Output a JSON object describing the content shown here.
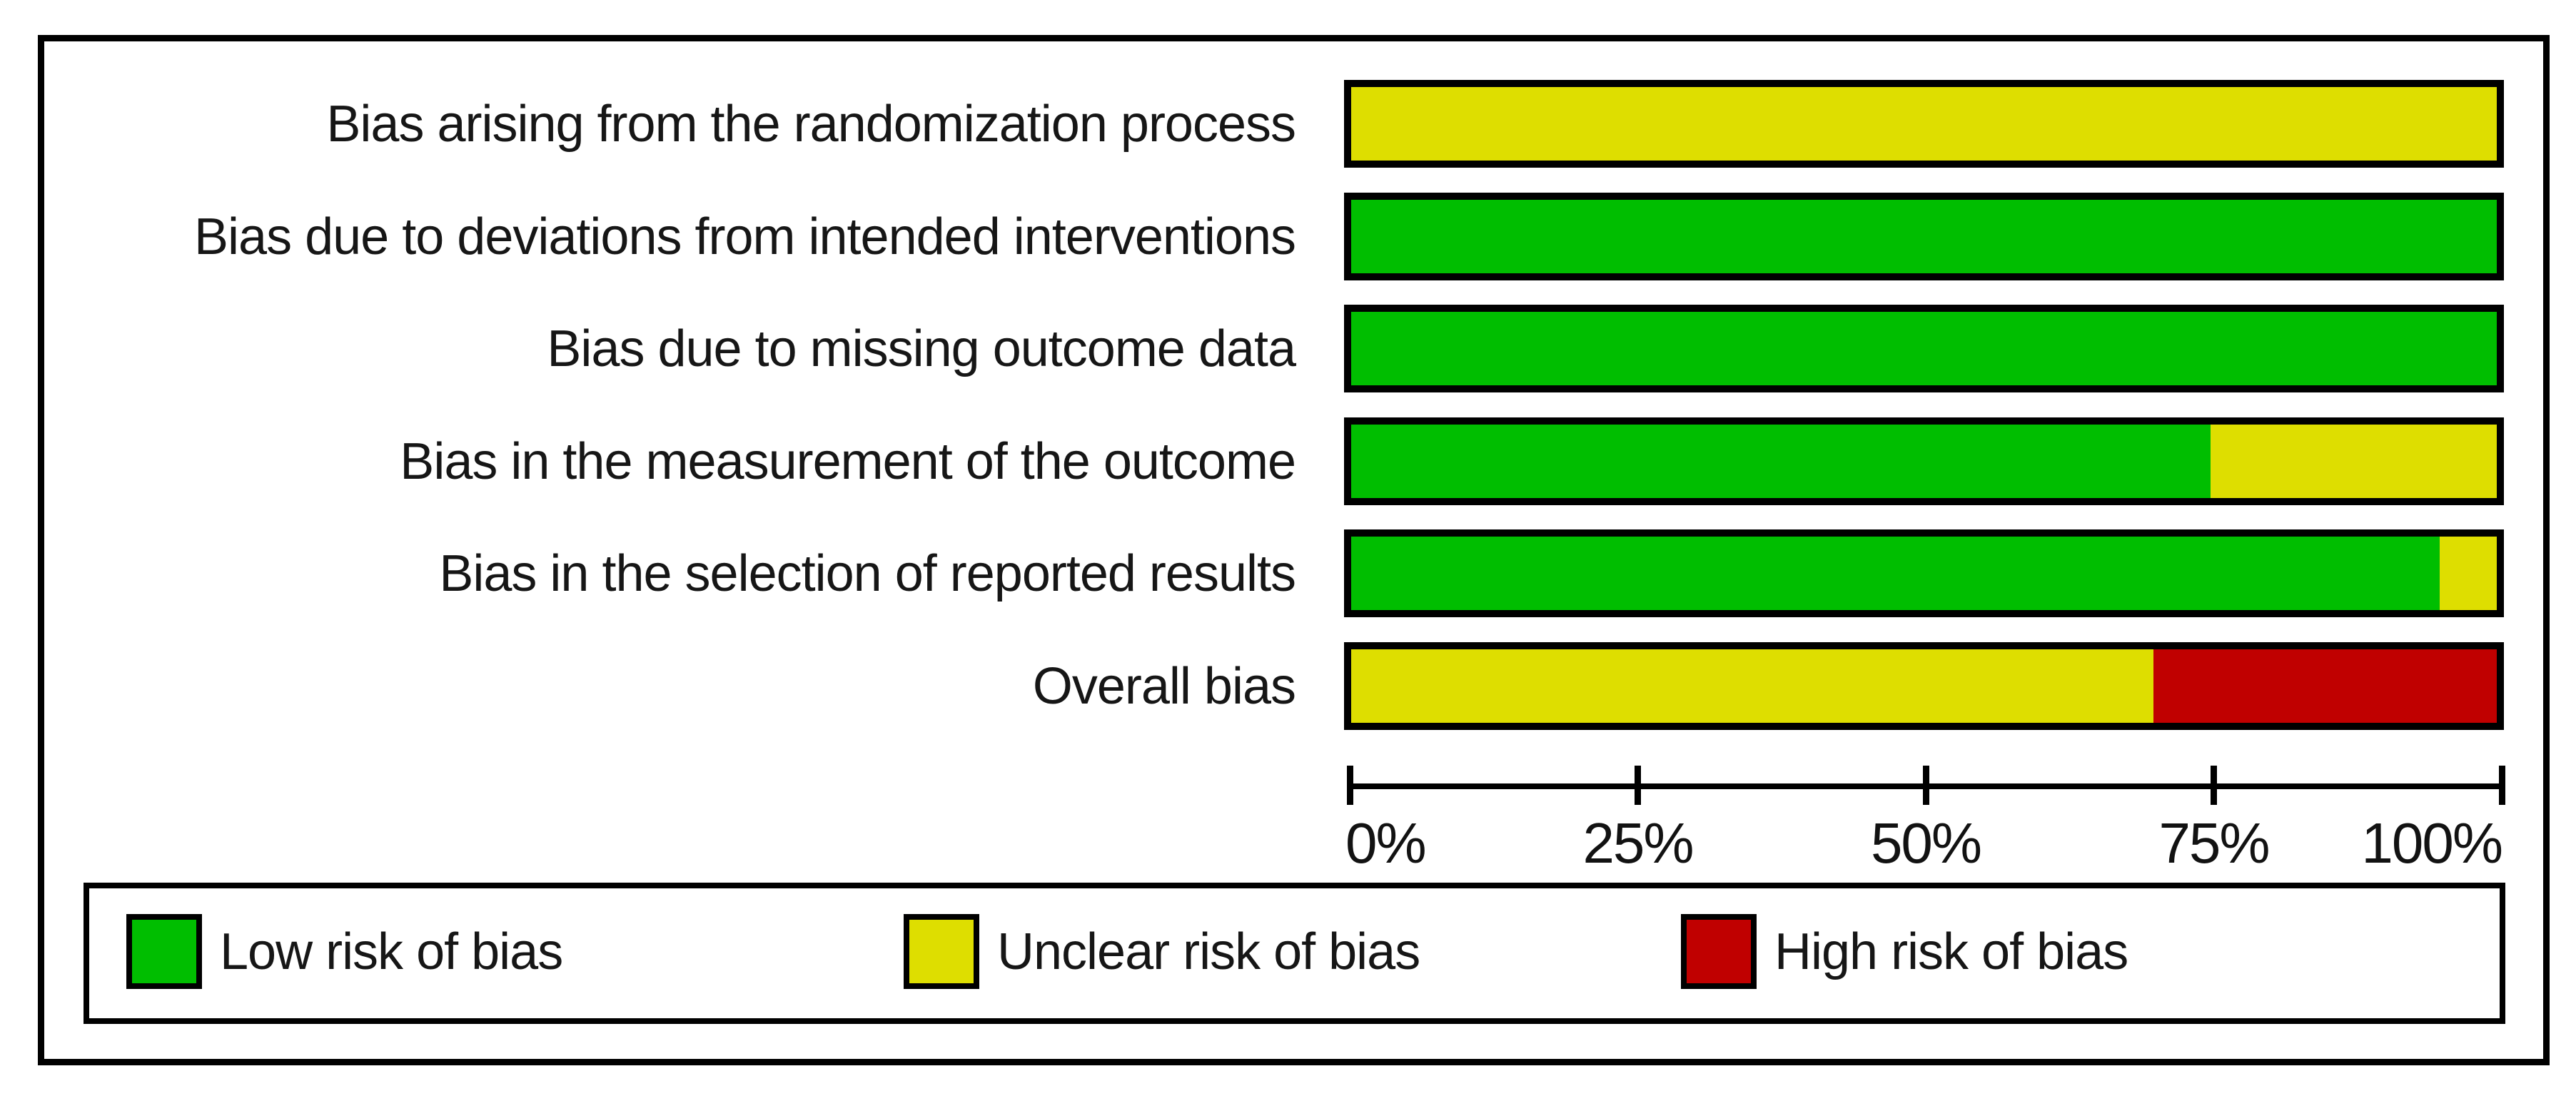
{
  "figure": {
    "name": "Risk of bias graph",
    "background": "#ffffff",
    "border_color": "#000000",
    "text_color": "#161616"
  },
  "colors": {
    "low": "#00be00",
    "unclear": "#dede00",
    "high": "#c00000"
  },
  "chart_data": {
    "type": "bar",
    "orientation": "horizontal-stacked",
    "title": "",
    "xlabel": "",
    "ylabel": "",
    "xlim": [
      0,
      100
    ],
    "grid": false,
    "categories": [
      "Bias arising from the randomization process",
      "Bias due to deviations from intended interventions",
      "Bias due to missing outcome data",
      "Bias in the measurement of the outcome",
      "Bias in the selection of reported results",
      "Overall bias"
    ],
    "series": [
      {
        "name": "Low risk of bias",
        "color_key": "low",
        "values": [
          0,
          100,
          100,
          75,
          95,
          0
        ]
      },
      {
        "name": "Unclear risk of bias",
        "color_key": "unclear",
        "values": [
          100,
          0,
          0,
          25,
          5,
          70
        ]
      },
      {
        "name": "High risk of bias",
        "color_key": "high",
        "values": [
          0,
          0,
          0,
          0,
          0,
          30
        ]
      }
    ],
    "x_axis": {
      "tick_labels": [
        "0%",
        "25%",
        "50%",
        "75%",
        "100%"
      ],
      "tick_values": [
        0,
        25,
        50,
        75,
        100
      ]
    },
    "legend": {
      "position": "bottom",
      "items": [
        {
          "label": "Low risk of bias",
          "color_key": "low"
        },
        {
          "label": "Unclear risk of bias",
          "color_key": "unclear"
        },
        {
          "label": "High risk of bias",
          "color_key": "high"
        }
      ]
    }
  }
}
